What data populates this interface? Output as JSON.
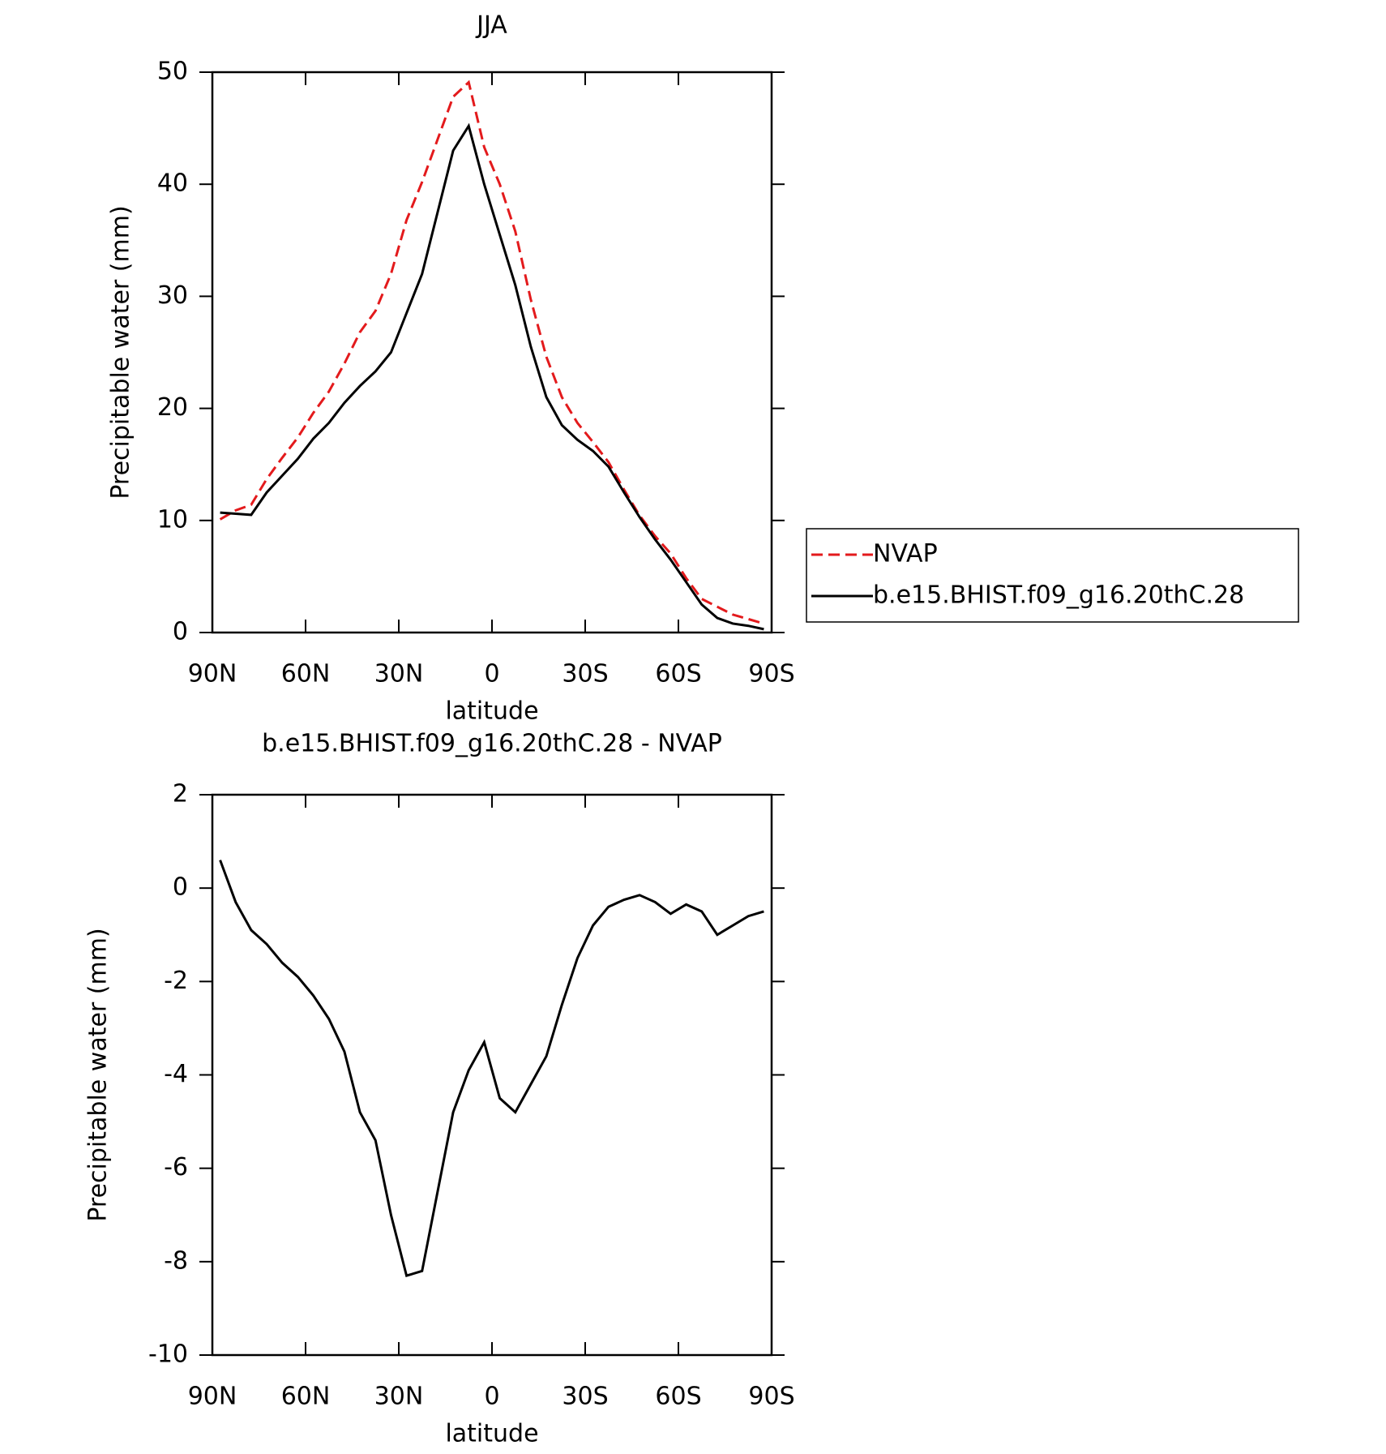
{
  "chart_data": [
    {
      "type": "line",
      "title": "JJA",
      "xlabel": "latitude",
      "ylabel": "Precipitable water (mm)",
      "x": [
        87.5,
        82.5,
        77.5,
        72.5,
        67.5,
        62.5,
        57.5,
        52.5,
        47.5,
        42.5,
        37.5,
        32.5,
        27.5,
        22.5,
        17.5,
        12.5,
        7.5,
        2.5,
        -2.5,
        -7.5,
        -12.5,
        -17.5,
        -22.5,
        -27.5,
        -32.5,
        -37.5,
        -42.5,
        -47.5,
        -52.5,
        -57.5,
        -62.5,
        -67.5,
        -72.5,
        -77.5,
        -82.5,
        -87.5
      ],
      "series": [
        {
          "name": "NVAP",
          "color": "#e31a1c",
          "dash": true,
          "values": [
            10.1,
            10.9,
            11.4,
            13.7,
            15.6,
            17.4,
            19.6,
            21.5,
            24,
            26.8,
            28.7,
            32,
            36.8,
            40.2,
            44,
            47.8,
            49.1,
            43.3,
            40,
            35.8,
            29.7,
            24.6,
            21,
            18.7,
            17,
            15.2,
            12.75,
            10.45,
            8.6,
            7.05,
            4.85,
            3,
            2.3,
            1.6,
            1.2,
            0.8
          ]
        },
        {
          "name": "b.e15.BHIST.f09_g16.20thC.28",
          "color": "#000000",
          "dash": false,
          "values": [
            10.7,
            10.6,
            10.5,
            12.5,
            14,
            15.5,
            17.3,
            18.7,
            20.5,
            22,
            23.3,
            25,
            28.5,
            32,
            37.5,
            43,
            45.2,
            40,
            35.5,
            31,
            25.5,
            21,
            18.5,
            17.2,
            16.2,
            14.8,
            12.5,
            10.3,
            8.3,
            6.5,
            4.5,
            2.5,
            1.3,
            0.8,
            0.6,
            0.3
          ]
        }
      ],
      "xlim": [
        90,
        -90
      ],
      "xticks": [
        {
          "value": 90,
          "label": "90N"
        },
        {
          "value": 60,
          "label": "60N"
        },
        {
          "value": 30,
          "label": "30N"
        },
        0,
        {
          "value": -30,
          "label": "30S"
        },
        {
          "value": -60,
          "label": "60S"
        },
        {
          "value": -90,
          "label": "90S"
        }
      ],
      "ylim": [
        0,
        50
      ],
      "yticks": [
        0,
        10,
        20,
        30,
        40,
        50
      ],
      "legend": "outside-right"
    },
    {
      "type": "line",
      "title": "b.e15.BHIST.f09_g16.20thC.28 - NVAP",
      "xlabel": "latitude",
      "ylabel": "Precipitable water (mm)",
      "x": [
        87.5,
        82.5,
        77.5,
        72.5,
        67.5,
        62.5,
        57.5,
        52.5,
        47.5,
        42.5,
        37.5,
        32.5,
        27.5,
        22.5,
        17.5,
        12.5,
        7.5,
        2.5,
        -2.5,
        -7.5,
        -12.5,
        -17.5,
        -22.5,
        -27.5,
        -32.5,
        -37.5,
        -42.5,
        -47.5,
        -52.5,
        -57.5,
        -62.5,
        -67.5,
        -72.5,
        -77.5,
        -82.5,
        -87.5
      ],
      "color": "#000000",
      "values": [
        0.6,
        -0.3,
        -0.9,
        -1.2,
        -1.6,
        -1.9,
        -2.3,
        -2.8,
        -3.5,
        -4.8,
        -5.4,
        -7,
        -8.3,
        -8.2,
        -6.5,
        -4.8,
        -3.9,
        -3.3,
        -4.5,
        -4.8,
        -4.2,
        -3.6,
        -2.5,
        -1.5,
        -0.8,
        -0.4,
        -0.25,
        -0.15,
        -0.3,
        -0.55,
        -0.35,
        -0.5,
        -1,
        -0.8,
        -0.6,
        -0.5
      ],
      "xlim": [
        90,
        -90
      ],
      "xticks": [
        {
          "value": 90,
          "label": "90N"
        },
        {
          "value": 60,
          "label": "60N"
        },
        {
          "value": 30,
          "label": "30N"
        },
        0,
        {
          "value": -30,
          "label": "30S"
        },
        {
          "value": -60,
          "label": "60S"
        },
        {
          "value": -90,
          "label": "90S"
        }
      ],
      "ylim": [
        -10,
        2
      ],
      "yticks": [
        -10,
        -8,
        -6,
        -4,
        -2,
        0,
        2
      ]
    }
  ]
}
